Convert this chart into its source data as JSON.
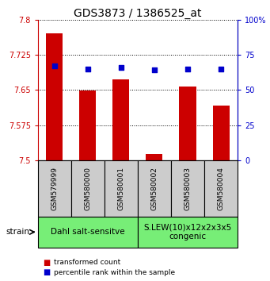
{
  "title": "GDS3873 / 1386525_at",
  "samples": [
    "GSM579999",
    "GSM580000",
    "GSM580001",
    "GSM580002",
    "GSM580003",
    "GSM580004"
  ],
  "transformed_counts": [
    7.77,
    7.648,
    7.672,
    7.513,
    7.658,
    7.617
  ],
  "percentile_ranks": [
    67,
    65,
    66,
    64,
    65,
    65
  ],
  "ylim_left": [
    7.5,
    7.8
  ],
  "ylim_right": [
    0,
    100
  ],
  "yticks_left": [
    7.5,
    7.575,
    7.65,
    7.725,
    7.8
  ],
  "yticks_right": [
    0,
    25,
    50,
    75,
    100
  ],
  "ytick_labels_left": [
    "7.5",
    "7.575",
    "7.65",
    "7.725",
    "7.8"
  ],
  "ytick_labels_right": [
    "0",
    "25",
    "50",
    "75",
    "100%"
  ],
  "bar_color": "#cc0000",
  "dot_color": "#0000cc",
  "baseline": 7.5,
  "group1_label": "Dahl salt-sensitve",
  "group2_label": "S.LEW(10)x12x2x3x5\ncongenic",
  "group1_indices": [
    0,
    1,
    2
  ],
  "group2_indices": [
    3,
    4,
    5
  ],
  "group_bg_color": "#77ee77",
  "sample_bg_color": "#cccccc",
  "strain_label": "strain",
  "legend_red_label": "transformed count",
  "legend_blue_label": "percentile rank within the sample",
  "title_fontsize": 10,
  "tick_fontsize": 7,
  "sample_fontsize": 6.5,
  "group_fontsize": 7.5
}
